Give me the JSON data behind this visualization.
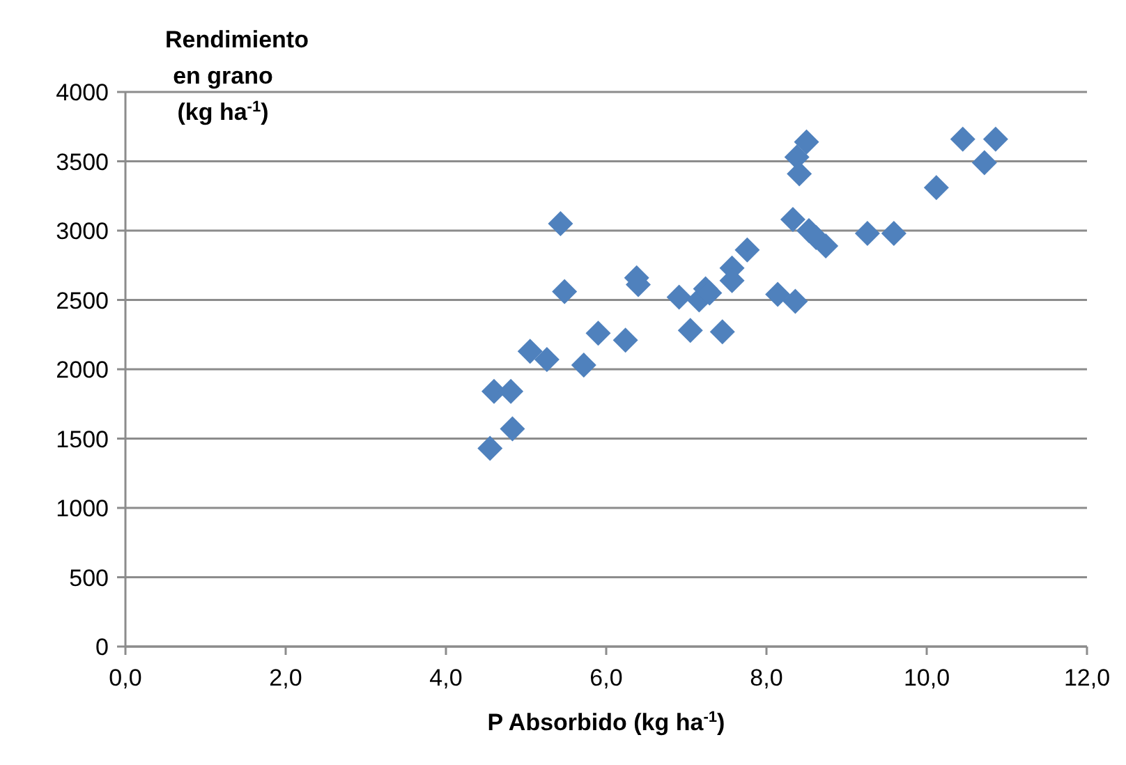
{
  "chart_data": {
    "type": "scatter",
    "xlabel": "P Absorbido (kg ha$^{-1}$)",
    "ylabel": "Rendimiento\nen grano\n(kg ha$^{-1}$)",
    "x": [
      4.55,
      4.6,
      4.81,
      4.83,
      5.05,
      5.26,
      5.43,
      5.48,
      5.72,
      5.9,
      6.24,
      6.38,
      6.4,
      6.91,
      7.05,
      7.16,
      7.24,
      7.29,
      7.45,
      7.57,
      7.57,
      7.76,
      8.14,
      8.36,
      8.33,
      8.38,
      8.41,
      8.5,
      8.53,
      8.62,
      8.74,
      9.26,
      9.59,
      10.12,
      10.45,
      10.72,
      10.86
    ],
    "series": [
      {
        "color": "#4f81bd",
        "values": [
          1430,
          1840,
          1840,
          1570,
          2130,
          2070,
          3050,
          2560,
          2030,
          2260,
          2210,
          2660,
          2610,
          2520,
          2280,
          2500,
          2580,
          2550,
          2270,
          2730,
          2640,
          2860,
          2540,
          2490,
          3080,
          3530,
          3410,
          3640,
          3000,
          2950,
          2890,
          2980,
          2980,
          3310,
          3660,
          3490,
          3660
        ]
      }
    ],
    "xlim": [
      0,
      12
    ],
    "xticks": [
      {
        "value": 0,
        "label": "0,0"
      },
      {
        "value": 2,
        "label": "2,0"
      },
      {
        "value": 4,
        "label": "4,0"
      },
      {
        "value": 6,
        "label": "6,0"
      },
      {
        "value": 8,
        "label": "8,0"
      },
      {
        "value": 10,
        "label": "10,0"
      },
      {
        "value": 12,
        "label": "12,0"
      }
    ],
    "ylim": [
      0,
      4000
    ],
    "yticks": [
      0,
      500,
      1000,
      1500,
      2000,
      2500,
      3000,
      3500,
      4000
    ],
    "grid": "y",
    "marker": "diamond"
  }
}
